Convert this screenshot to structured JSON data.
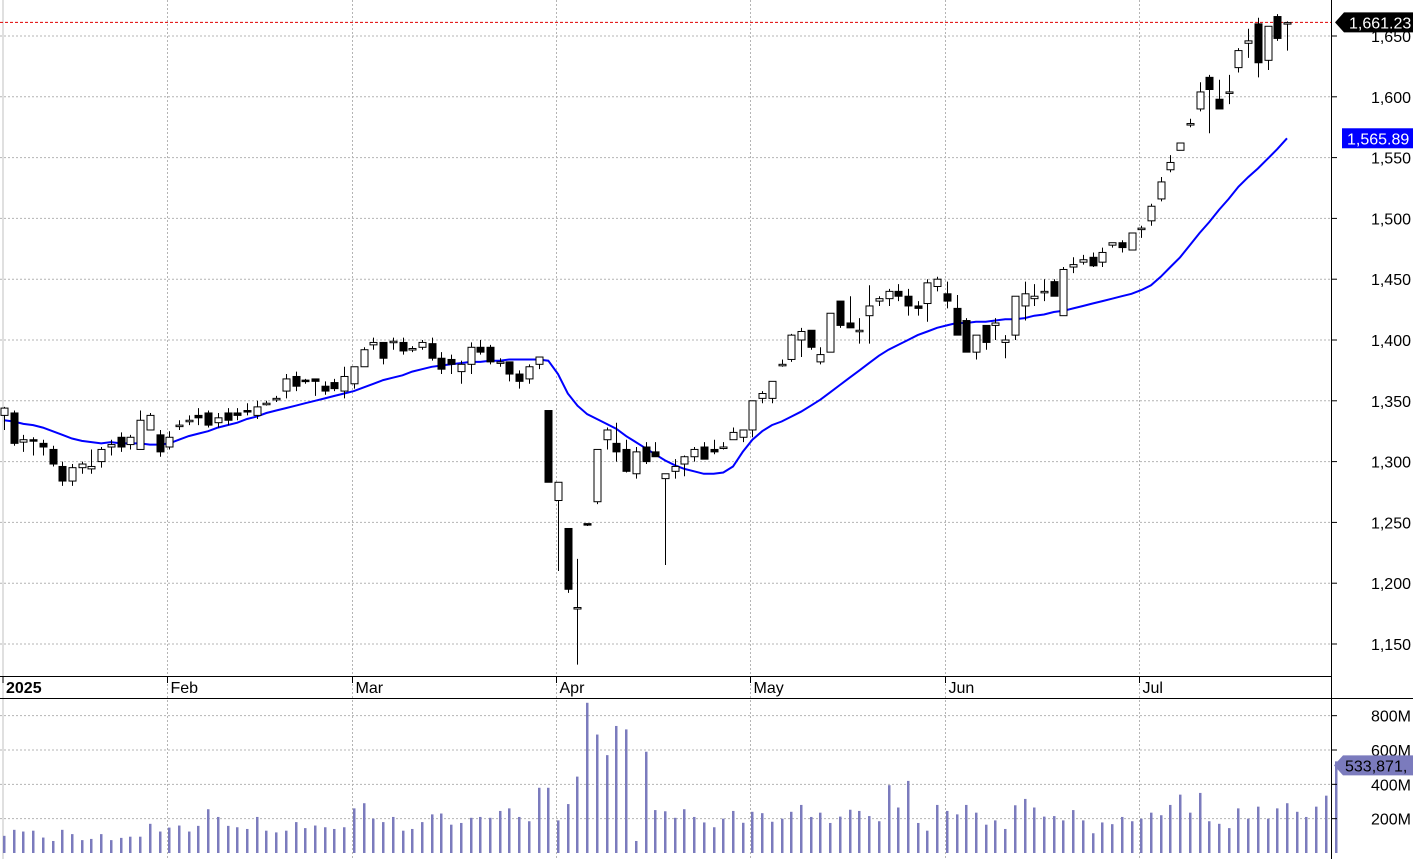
{
  "chart_data": {
    "type": "candlestick",
    "title": "",
    "price_axis": {
      "ticks": [
        1150,
        1200,
        1250,
        1300,
        1350,
        1400,
        1450,
        1500,
        1550,
        1600,
        1650
      ],
      "tick_labels": [
        "1,150",
        "1,200",
        "1,250",
        "1,300",
        "1,350",
        "1,400",
        "1,450",
        "1,500",
        "1,550",
        "1,600",
        "1,650"
      ],
      "range": [
        1128,
        1680
      ]
    },
    "volume_axis": {
      "ticks": [
        200,
        400,
        600,
        800
      ],
      "tick_labels": [
        "200M",
        "400M",
        "600M",
        "800M"
      ],
      "unit": "M"
    },
    "x_labels": [
      {
        "label": "2025",
        "index": 0,
        "bold": true
      },
      {
        "label": "Feb",
        "index": 17
      },
      {
        "label": "Mar",
        "index": 36
      },
      {
        "label": "Apr",
        "index": 57
      },
      {
        "label": "May",
        "index": 77
      },
      {
        "label": "Jun",
        "index": 97
      },
      {
        "label": "Jul",
        "index": 117
      }
    ],
    "last_price_label": "1,661.23",
    "ma_label": "1,565.89",
    "volume_label": "533,871,",
    "series": [
      {
        "name": "Price",
        "type": "ohlc",
        "ohlc": [
          [
            1338,
            1345,
            1326,
            1344
          ],
          [
            1340,
            1342,
            1313,
            1315
          ],
          [
            1316,
            1322,
            1308,
            1318
          ],
          [
            1318,
            1320,
            1305,
            1317
          ],
          [
            1315,
            1318,
            1305,
            1312
          ],
          [
            1310,
            1313,
            1296,
            1298
          ],
          [
            1296,
            1300,
            1280,
            1284
          ],
          [
            1284,
            1298,
            1280,
            1295
          ],
          [
            1295,
            1300,
            1290,
            1298
          ],
          [
            1294,
            1310,
            1290,
            1296
          ],
          [
            1300,
            1312,
            1295,
            1310
          ],
          [
            1312,
            1318,
            1305,
            1314
          ],
          [
            1320,
            1324,
            1308,
            1312
          ],
          [
            1314,
            1322,
            1310,
            1320
          ],
          [
            1310,
            1342,
            1310,
            1334
          ],
          [
            1326,
            1340,
            1326,
            1338
          ],
          [
            1322,
            1326,
            1304,
            1308
          ],
          [
            1312,
            1325,
            1310,
            1320
          ],
          [
            1330,
            1334,
            1326,
            1330
          ],
          [
            1334,
            1338,
            1330,
            1334
          ],
          [
            1338,
            1344,
            1330,
            1336
          ],
          [
            1340,
            1342,
            1328,
            1330
          ],
          [
            1332,
            1340,
            1328,
            1336
          ],
          [
            1340,
            1344,
            1330,
            1334
          ],
          [
            1340,
            1344,
            1334,
            1338
          ],
          [
            1342,
            1348,
            1338,
            1341
          ],
          [
            1338,
            1350,
            1335,
            1345
          ],
          [
            1348,
            1350,
            1346,
            1348
          ],
          [
            1352,
            1354,
            1349,
            1352
          ],
          [
            1358,
            1372,
            1352,
            1368
          ],
          [
            1370,
            1374,
            1358,
            1362
          ],
          [
            1367,
            1368,
            1364,
            1366
          ],
          [
            1368,
            1368,
            1354,
            1366
          ],
          [
            1362,
            1366,
            1355,
            1358
          ],
          [
            1365,
            1368,
            1358,
            1360
          ],
          [
            1358,
            1378,
            1352,
            1370
          ],
          [
            1364,
            1378,
            1360,
            1378
          ],
          [
            1378,
            1394,
            1378,
            1392
          ],
          [
            1396,
            1402,
            1392,
            1398
          ],
          [
            1398,
            1398,
            1380,
            1385
          ],
          [
            1398,
            1402,
            1392,
            1399
          ],
          [
            1398,
            1402,
            1388,
            1391
          ],
          [
            1393,
            1395,
            1390,
            1393
          ],
          [
            1394,
            1400,
            1392,
            1398
          ],
          [
            1397,
            1402,
            1383,
            1385
          ],
          [
            1385,
            1390,
            1372,
            1376
          ],
          [
            1384,
            1388,
            1372,
            1380
          ],
          [
            1374,
            1383,
            1364,
            1380
          ],
          [
            1380,
            1398,
            1372,
            1394
          ],
          [
            1394,
            1400,
            1388,
            1390
          ],
          [
            1394,
            1396,
            1380,
            1382
          ],
          [
            1382,
            1385,
            1378,
            1382
          ],
          [
            1382,
            1382,
            1366,
            1372
          ],
          [
            1372,
            1375,
            1360,
            1366
          ],
          [
            1368,
            1380,
            1364,
            1378
          ],
          [
            1380,
            1385,
            1376,
            1386
          ],
          [
            1342,
            1342,
            1283,
            1283
          ],
          [
            1268,
            1283,
            1210,
            1283
          ],
          [
            1245,
            1245,
            1192,
            1195
          ],
          [
            1180,
            1220,
            1133,
            1180
          ],
          [
            1249,
            1249,
            1247,
            1248
          ],
          [
            1267,
            1310,
            1265,
            1310
          ],
          [
            1318,
            1328,
            1310,
            1326
          ],
          [
            1315,
            1332,
            1300,
            1308
          ],
          [
            1310,
            1318,
            1291,
            1292
          ],
          [
            1290,
            1312,
            1286,
            1308
          ],
          [
            1312,
            1316,
            1298,
            1300
          ],
          [
            1308,
            1316,
            1305,
            1304
          ],
          [
            1286,
            1290,
            1215,
            1290
          ],
          [
            1292,
            1302,
            1286,
            1296
          ],
          [
            1298,
            1305,
            1288,
            1304
          ],
          [
            1304,
            1312,
            1300,
            1310
          ],
          [
            1312,
            1316,
            1308,
            1302
          ],
          [
            1310,
            1318,
            1306,
            1308
          ],
          [
            1312,
            1316,
            1310,
            1312
          ],
          [
            1318,
            1328,
            1318,
            1324
          ],
          [
            1320,
            1326,
            1316,
            1326
          ],
          [
            1326,
            1350,
            1320,
            1350
          ],
          [
            1352,
            1358,
            1348,
            1356
          ],
          [
            1352,
            1366,
            1348,
            1366
          ],
          [
            1380,
            1384,
            1378,
            1380
          ],
          [
            1384,
            1405,
            1382,
            1404
          ],
          [
            1400,
            1410,
            1386,
            1407
          ],
          [
            1408,
            1408,
            1392,
            1394
          ],
          [
            1382,
            1394,
            1380,
            1388
          ],
          [
            1390,
            1422,
            1390,
            1422
          ],
          [
            1432,
            1432,
            1410,
            1412
          ],
          [
            1414,
            1436,
            1414,
            1410
          ],
          [
            1408,
            1418,
            1397,
            1408
          ],
          [
            1420,
            1445,
            1397,
            1428
          ],
          [
            1432,
            1436,
            1428,
            1434
          ],
          [
            1434,
            1442,
            1428,
            1440
          ],
          [
            1440,
            1446,
            1432,
            1436
          ],
          [
            1436,
            1442,
            1420,
            1428
          ],
          [
            1428,
            1432,
            1420,
            1426
          ],
          [
            1430,
            1450,
            1415,
            1447
          ],
          [
            1444,
            1452,
            1440,
            1450
          ],
          [
            1438,
            1448,
            1426,
            1432
          ],
          [
            1426,
            1437,
            1404,
            1404
          ],
          [
            1416,
            1418,
            1392,
            1390
          ],
          [
            1390,
            1402,
            1384,
            1404
          ],
          [
            1412,
            1412,
            1392,
            1398
          ],
          [
            1412,
            1418,
            1400,
            1414
          ],
          [
            1398,
            1404,
            1385,
            1400
          ],
          [
            1404,
            1420,
            1400,
            1436
          ],
          [
            1428,
            1448,
            1416,
            1438
          ],
          [
            1434,
            1446,
            1428,
            1436
          ],
          [
            1440,
            1450,
            1432,
            1440
          ],
          [
            1448,
            1450,
            1438,
            1436
          ],
          [
            1420,
            1460,
            1420,
            1458
          ],
          [
            1460,
            1468,
            1455,
            1462
          ],
          [
            1464,
            1470,
            1462,
            1466
          ],
          [
            1468,
            1472,
            1460,
            1461
          ],
          [
            1464,
            1476,
            1460,
            1472
          ],
          [
            1478,
            1480,
            1476,
            1480
          ],
          [
            1480,
            1482,
            1472,
            1476
          ],
          [
            1474,
            1488,
            1474,
            1488
          ],
          [
            1492,
            1494,
            1484,
            1492
          ],
          [
            1498,
            1512,
            1494,
            1510
          ],
          [
            1516,
            1534,
            1514,
            1530
          ],
          [
            1540,
            1552,
            1538,
            1546
          ],
          [
            1556,
            1562,
            1556,
            1562
          ],
          [
            1578,
            1582,
            1575,
            1578
          ],
          [
            1590,
            1612,
            1588,
            1604
          ],
          [
            1616,
            1618,
            1570,
            1606
          ],
          [
            1598,
            1614,
            1592,
            1590
          ],
          [
            1603,
            1618,
            1594,
            1604
          ],
          [
            1624,
            1640,
            1620,
            1638
          ],
          [
            1644,
            1656,
            1632,
            1646
          ],
          [
            1660,
            1665,
            1616,
            1628
          ],
          [
            1630,
            1658,
            1622,
            1658
          ],
          [
            1666,
            1668,
            1646,
            1648
          ],
          [
            1660,
            1662,
            1638,
            1661
          ]
        ]
      },
      {
        "name": "Moving Average",
        "color": "#0000ff",
        "values": [
          1334,
          1333,
          1331,
          1330,
          1328,
          1325,
          1322,
          1319,
          1317,
          1316,
          1315,
          1316,
          1315,
          1315,
          1315,
          1314,
          1314,
          1315,
          1318,
          1321,
          1323,
          1325,
          1328,
          1330,
          1332,
          1335,
          1337,
          1340,
          1342,
          1344,
          1346,
          1348,
          1350,
          1352,
          1354,
          1356,
          1358,
          1361,
          1364,
          1367,
          1369,
          1371,
          1374,
          1376,
          1378,
          1379,
          1380,
          1381,
          1382,
          1382,
          1383,
          1383,
          1384,
          1384,
          1384,
          1384,
          1383,
          1372,
          1356,
          1346,
          1339,
          1335,
          1331,
          1327,
          1321,
          1316,
          1311,
          1306,
          1301,
          1297,
          1294,
          1292,
          1290,
          1290,
          1291,
          1296,
          1308,
          1318,
          1325,
          1330,
          1333,
          1337,
          1341,
          1346,
          1351,
          1357,
          1363,
          1369,
          1375,
          1381,
          1387,
          1392,
          1396,
          1400,
          1404,
          1407,
          1410,
          1412,
          1414,
          1414,
          1415,
          1415,
          1416,
          1417,
          1417,
          1418,
          1420,
          1421,
          1423,
          1424,
          1426,
          1428,
          1430,
          1432,
          1434,
          1436,
          1438,
          1441,
          1445,
          1452,
          1460,
          1468,
          1478,
          1488,
          1497,
          1507,
          1516,
          1526,
          1534,
          1541,
          1549,
          1557,
          1565.89
        ]
      },
      {
        "name": "Volume",
        "unit": "M",
        "values": [
          100,
          135,
          125,
          130,
          90,
          70,
          135,
          110,
          75,
          82,
          110,
          75,
          88,
          95,
          95,
          170,
          125,
          148,
          160,
          125,
          158,
          255,
          210,
          158,
          150,
          140,
          210,
          130,
          120,
          130,
          180,
          145,
          160,
          150,
          140,
          150,
          260,
          290,
          200,
          180,
          210,
          130,
          140,
          180,
          225,
          230,
          165,
          175,
          205,
          210,
          205,
          245,
          260,
          210,
          185,
          380,
          380,
          190,
          285,
          445,
          875,
          690,
          570,
          740,
          720,
          70,
          590,
          250,
          243,
          205,
          255,
          210,
          178,
          150,
          200,
          245,
          176,
          240,
          232,
          182,
          200,
          240,
          280,
          210,
          235,
          175,
          212,
          252,
          245,
          215,
          185,
          395,
          265,
          420,
          175,
          130,
          280,
          245,
          225,
          280,
          235,
          165,
          190,
          140,
          278,
          315,
          265,
          212,
          215,
          190,
          250,
          190,
          115,
          178,
          168,
          210,
          185,
          200,
          235,
          220,
          280,
          340,
          235,
          350,
          185,
          170,
          145,
          260,
          200,
          270,
          200,
          260,
          290,
          240,
          210,
          270,
          334,
          533.87
        ]
      }
    ]
  },
  "labels": {
    "last_price": "1,661.23",
    "ma_value": "1,565.89",
    "volume_value": "533,871,",
    "year": "2025"
  }
}
